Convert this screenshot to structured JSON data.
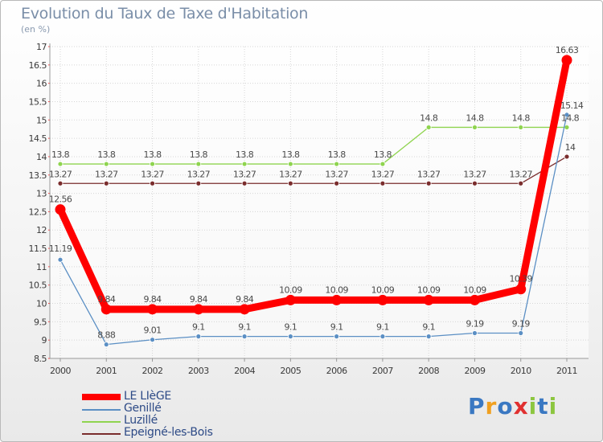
{
  "chart_data": {
    "type": "line",
    "title": "Evolution du Taux de Taxe d'Habitation",
    "subtitle": "(en %)",
    "x": [
      "2000",
      "2001",
      "2002",
      "2003",
      "2004",
      "2005",
      "2006",
      "2007",
      "2008",
      "2009",
      "2010",
      "2011"
    ],
    "ylim": [
      8.5,
      17
    ],
    "yticks": [
      "8.5",
      "9",
      "9.5",
      "10",
      "10.5",
      "11",
      "11.5",
      "12",
      "12.5",
      "13",
      "13.5",
      "14",
      "14.5",
      "15",
      "15.5",
      "16",
      "16.5",
      "17"
    ],
    "grid": true,
    "series": [
      {
        "name": "LE LIèGE",
        "color": "#ff0000",
        "values": [
          12.56,
          9.84,
          9.84,
          9.84,
          9.84,
          10.09,
          10.09,
          10.09,
          10.09,
          10.09,
          10.39,
          16.63
        ],
        "labels": [
          "12.56",
          "9.84",
          "9.84",
          "9.84",
          "9.84",
          "10.09",
          "10.09",
          "10.09",
          "10.09",
          "10.09",
          "10.39",
          "16.63"
        ]
      },
      {
        "name": "Genillé",
        "color": "#5b8fc4",
        "values": [
          11.19,
          8.88,
          9.01,
          9.1,
          9.1,
          9.1,
          9.1,
          9.1,
          9.1,
          9.19,
          9.19,
          15.14
        ],
        "labels": [
          "11.19",
          "8.88",
          "9.01",
          "9.1",
          "9.1",
          "9.1",
          "9.1",
          "9.1",
          "9.1",
          "9.19",
          "9.19",
          "15.14"
        ]
      },
      {
        "name": "Luzillé",
        "color": "#8fd44f",
        "values": [
          13.8,
          13.8,
          13.8,
          13.8,
          13.8,
          13.8,
          13.8,
          13.8,
          14.8,
          14.8,
          14.8,
          14.8
        ],
        "labels": [
          "13.8",
          "13.8",
          "13.8",
          "13.8",
          "13.8",
          "13.8",
          "13.8",
          "13.8",
          "14.8",
          "14.8",
          "14.8",
          "14.8"
        ]
      },
      {
        "name": "Epeigné-les-Bois",
        "color": "#7a2d2d",
        "values": [
          13.27,
          13.27,
          13.27,
          13.27,
          13.27,
          13.27,
          13.27,
          13.27,
          13.27,
          13.27,
          13.27,
          14
        ],
        "labels": [
          "13.27",
          "13.27",
          "13.27",
          "13.27",
          "13.27",
          "13.27",
          "13.27",
          "13.27",
          "13.27",
          "13.27",
          "13.27",
          "14"
        ]
      }
    ],
    "legend_position": "bottom-left"
  },
  "logo": {
    "letters": [
      "P",
      "r",
      "o",
      "x",
      "i",
      "t",
      "i"
    ],
    "colors": [
      "#3a78c2",
      "#f0a020",
      "#3a78c2",
      "#e03030",
      "#8cc63f",
      "#3a78c2",
      "#8cc63f"
    ]
  }
}
